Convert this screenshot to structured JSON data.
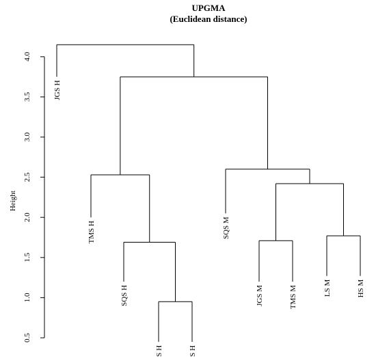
{
  "chart_data": {
    "type": "dendrogram",
    "title_lines": [
      "UPGMA",
      "(Euclidean distance)"
    ],
    "ylabel": "Height",
    "ylim": [
      0.5,
      4.2
    ],
    "yticks": [
      0.5,
      1.0,
      1.5,
      2.0,
      2.5,
      3.0,
      3.5,
      4.0
    ],
    "ytick_labels": [
      "0.5",
      "1.0",
      "1.5",
      "2.0",
      "2.5",
      "3.0",
      "3.5",
      "4.0"
    ],
    "leaves": [
      {
        "label": "JGS H",
        "height": 3.75
      },
      {
        "label": "TMS H",
        "height": 2.0
      },
      {
        "label": "SQS H",
        "height": 1.2
      },
      {
        "label": "LS H",
        "height": 0.45
      },
      {
        "label": "HS H",
        "height": 0.45
      },
      {
        "label": "SQS M",
        "height": 2.05
      },
      {
        "label": "JGS M",
        "height": 1.2
      },
      {
        "label": "TMS M",
        "height": 1.2
      },
      {
        "label": "LS M",
        "height": 1.27
      },
      {
        "label": "HS M",
        "height": 1.27
      }
    ],
    "merges": [
      {
        "left": "LS H",
        "right": "HS H",
        "height": 0.95
      },
      {
        "left": "SQS H",
        "right": "LS H + HS H",
        "height": 1.69
      },
      {
        "left": "TMS H",
        "right": "SQS H + LS H + HS H",
        "height": 2.53
      },
      {
        "left": "JGS M",
        "right": "TMS M",
        "height": 1.71
      },
      {
        "left": "LS M",
        "right": "HS M",
        "height": 1.77
      },
      {
        "left": "JGS M + TMS M",
        "right": "LS M + HS M",
        "height": 2.42
      },
      {
        "left": "SQS M",
        "right": "JGS M + TMS M + LS M + HS M",
        "height": 2.6
      },
      {
        "left": "TMS H + SQS H + LS H + HS H",
        "right": "M group",
        "height": 3.75
      },
      {
        "left": "JGS H",
        "right": "rest",
        "height": 4.15
      }
    ]
  }
}
